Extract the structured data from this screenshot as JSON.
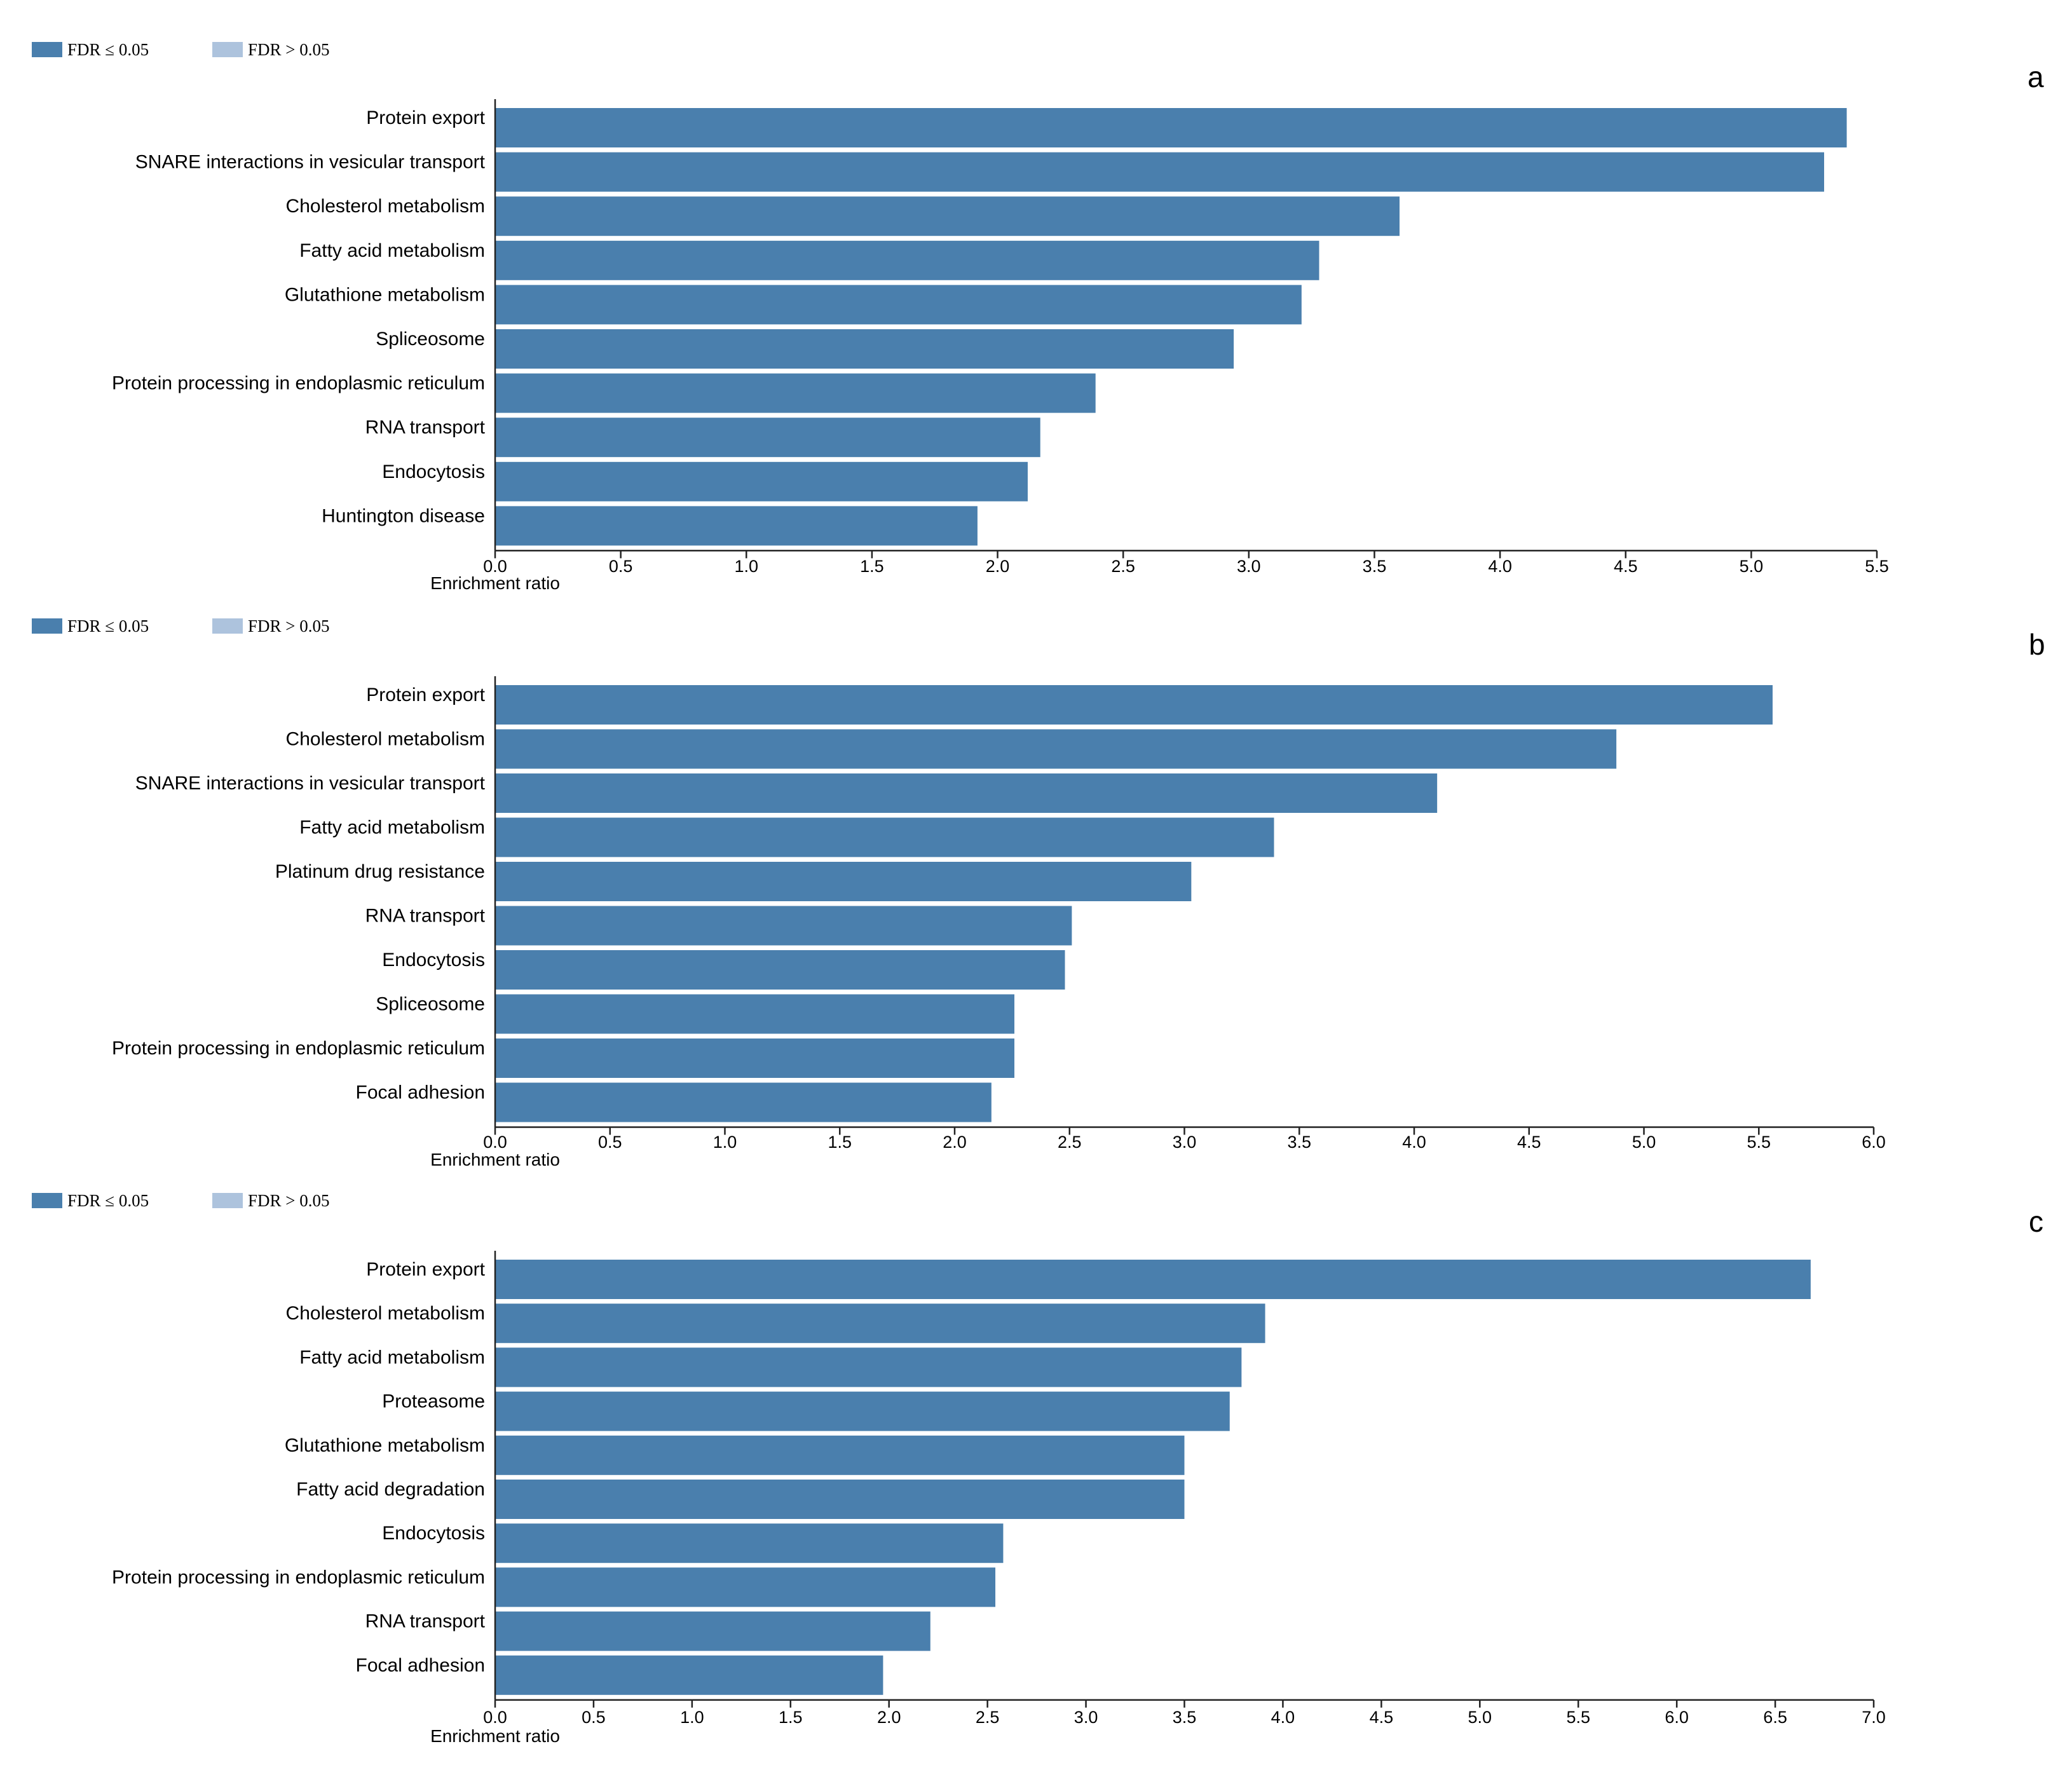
{
  "colors": {
    "significant": "#4a7fad",
    "nonsignificant": "#adc3dd",
    "axis": "#222222"
  },
  "chart_data": [
    {
      "type": "bar",
      "orientation": "horizontal",
      "panel_label": "a",
      "legend": [
        {
          "label": "FDR ≤ 0.05",
          "color": "#4a7fad"
        },
        {
          "label": "FDR > 0.05",
          "color": "#adc3dd"
        }
      ],
      "legend_position": "top-left",
      "xlabel": "Enrichment ratio",
      "xlim": [
        0,
        5.5
      ],
      "xticks": [
        "0.0",
        "0.5",
        "1.0",
        "1.5",
        "2.0",
        "2.5",
        "3.0",
        "3.5",
        "4.0",
        "4.5",
        "5.0",
        "5.5"
      ],
      "grid": false,
      "categories": [
        "Protein export",
        "SNARE interactions in vesicular transport",
        "Cholesterol metabolism",
        "Fatty acid metabolism",
        "Glutathione metabolism",
        "Spliceosome",
        "Protein processing in endoplasmic reticulum",
        "RNA transport",
        "Endocytosis",
        "Huntington disease"
      ],
      "values": [
        5.38,
        5.29,
        3.6,
        3.28,
        3.21,
        2.94,
        2.39,
        2.17,
        2.12,
        1.92
      ]
    },
    {
      "type": "bar",
      "orientation": "horizontal",
      "panel_label": "b",
      "legend": [
        {
          "label": "FDR ≤ 0.05",
          "color": "#4a7fad"
        },
        {
          "label": "FDR > 0.05",
          "color": "#adc3dd"
        }
      ],
      "legend_position": "top-left",
      "xlabel": "Enrichment ratio",
      "xlim": [
        0,
        6.0
      ],
      "xticks": [
        "0.0",
        "0.5",
        "1.0",
        "1.5",
        "2.0",
        "2.5",
        "3.0",
        "3.5",
        "4.0",
        "4.5",
        "5.0",
        "5.5",
        "6.0"
      ],
      "grid": false,
      "categories": [
        "Protein export",
        "Cholesterol metabolism",
        "SNARE interactions in vesicular transport",
        "Fatty acid metabolism",
        "Platinum drug resistance",
        "RNA transport",
        "Endocytosis",
        "Spliceosome",
        "Protein processing in endoplasmic reticulum",
        "Focal adhesion"
      ],
      "values": [
        5.56,
        4.88,
        4.1,
        3.39,
        3.03,
        2.51,
        2.48,
        2.26,
        2.26,
        2.16
      ]
    },
    {
      "type": "bar",
      "orientation": "horizontal",
      "panel_label": "c",
      "legend": [
        {
          "label": "FDR ≤ 0.05",
          "color": "#4a7fad"
        },
        {
          "label": "FDR > 0.05",
          "color": "#adc3dd"
        }
      ],
      "legend_position": "top-left",
      "xlabel": "Enrichment ratio",
      "xlim": [
        0,
        7.0
      ],
      "xticks": [
        "0.0",
        "0.5",
        "1.0",
        "1.5",
        "2.0",
        "2.5",
        "3.0",
        "3.5",
        "4.0",
        "4.5",
        "5.0",
        "5.5",
        "6.0",
        "6.5",
        "7.0"
      ],
      "grid": false,
      "categories": [
        "Protein export",
        "Cholesterol metabolism",
        "Fatty acid metabolism",
        "Proteasome",
        "Glutathione metabolism",
        "Fatty acid degradation",
        "Endocytosis",
        "Protein processing in endoplasmic reticulum",
        "RNA transport",
        "Focal adhesion"
      ],
      "values": [
        6.68,
        3.91,
        3.79,
        3.73,
        3.5,
        3.5,
        2.58,
        2.54,
        2.21,
        1.97
      ]
    }
  ]
}
